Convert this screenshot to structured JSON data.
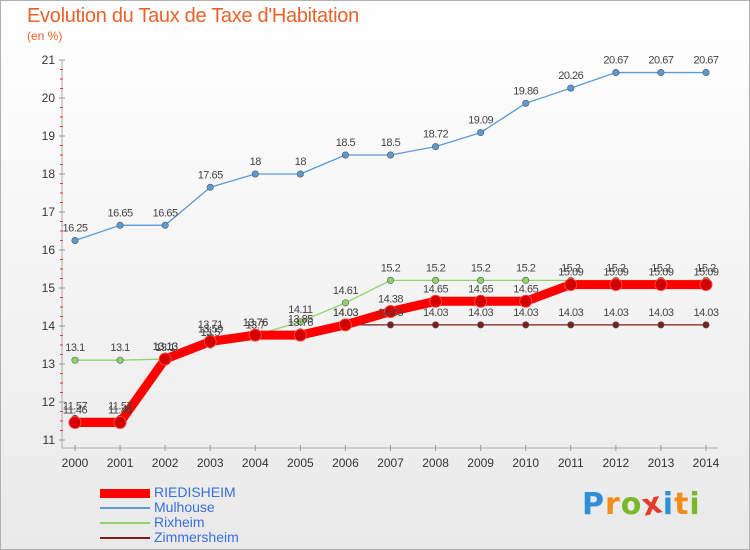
{
  "header": {
    "title": "Evolution du Taux de Taxe d'Habitation",
    "unit": "(en %)"
  },
  "logo": {
    "letters": [
      "P",
      "r",
      "o",
      "x",
      "i",
      "t",
      "i"
    ],
    "colors": [
      "#2f8fd8",
      "#f28c1c",
      "#7ab82a",
      "#e63a2a",
      "#2f8fd8",
      "#f28c1c",
      "#7ab82a"
    ]
  },
  "chart_data": {
    "type": "line",
    "title": "Evolution du Taux de Taxe d'Habitation",
    "ylabel": "(en %)",
    "xlabel": "",
    "x": [
      "2000",
      "2001",
      "2002",
      "2003",
      "2004",
      "2005",
      "2006",
      "2007",
      "2008",
      "2009",
      "2010",
      "2011",
      "2012",
      "2013",
      "2014"
    ],
    "ylim": [
      11,
      21
    ],
    "yticks": [
      "11",
      "12",
      "13",
      "14",
      "15",
      "16",
      "17",
      "18",
      "19",
      "20",
      "21"
    ],
    "grid": false,
    "legend_position": "bottom-left",
    "series": [
      {
        "name": "RIEDISHEIM",
        "color": "#ff0000",
        "width": 9,
        "values": [
          11.46,
          11.46,
          13.13,
          13.59,
          13.76,
          13.76,
          14.03,
          14.38,
          14.65,
          14.65,
          14.65,
          15.09,
          15.09,
          15.09,
          15.09
        ],
        "labels": [
          "11.46",
          "11.46",
          "13.13",
          "13.59",
          "13.76",
          "13.76",
          "14.03",
          "14.38",
          "14.65",
          "14.65",
          "14.65",
          "15.09",
          "15.09",
          "15.09",
          "15.09"
        ]
      },
      {
        "name": "Mulhouse",
        "color": "#5b9bd5",
        "width": 1.3,
        "values": [
          16.25,
          16.65,
          16.65,
          17.65,
          18,
          18,
          18.5,
          18.5,
          18.72,
          19.09,
          19.86,
          20.26,
          20.67,
          20.67,
          20.67
        ],
        "labels": [
          "16.25",
          "16.65",
          "16.65",
          "17.65",
          "18",
          "18",
          "18.5",
          "18.5",
          "18.72",
          "19.09",
          "19.86",
          "20.26",
          "20.67",
          "20.67",
          "20.67"
        ]
      },
      {
        "name": "Rixheim",
        "color": "#8fd46b",
        "width": 1.3,
        "values": [
          13.1,
          13.1,
          13.13,
          13.71,
          13.76,
          14.11,
          14.61,
          15.2,
          15.2,
          15.2,
          15.2,
          15.2,
          15.2,
          15.2,
          15.2
        ],
        "labels": [
          "13.1",
          "13.1",
          "13.13",
          "13.71",
          "13.76",
          "14.11",
          "14.61",
          "15.2",
          "15.2",
          "15.2",
          "15.2",
          "15.2",
          "15.2",
          "15.2",
          "15.2"
        ]
      },
      {
        "name": "Zimmersheim",
        "color": "#7a1f1f",
        "width": 1.3,
        "values": [
          11.57,
          11.57,
          13.1,
          13.5,
          13.7,
          13.85,
          14.03,
          14.03,
          14.03,
          14.03,
          14.03,
          14.03,
          14.03,
          14.03,
          14.03
        ],
        "labels": [
          "11.57",
          "11.57",
          "13.1",
          "13.5",
          "13.7",
          "13.85",
          "14.03",
          "14.03",
          "14.03",
          "14.03",
          "14.03",
          "14.03",
          "14.03",
          "14.03",
          "14.03"
        ]
      }
    ]
  }
}
